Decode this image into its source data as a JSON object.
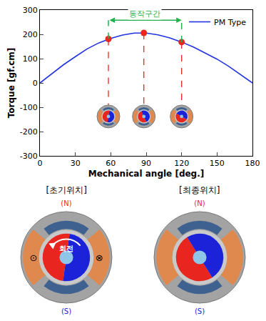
{
  "chart_data": {
    "type": "line",
    "x": [
      0,
      10,
      20,
      30,
      40,
      50,
      60,
      70,
      80,
      90,
      100,
      110,
      120,
      130,
      140,
      150,
      160,
      170,
      180
    ],
    "series": [
      {
        "name": "PM Type",
        "color": "#2233e0",
        "type": "line",
        "values": [
          0,
          38,
          75,
          108,
          140,
          165,
          183,
          197,
          205,
          205,
          198,
          185,
          168,
          148,
          124,
          98,
          68,
          35,
          0
        ]
      },
      {
        "type": "scatter",
        "marker": "circle",
        "color": "#e8271f",
        "x": [
          58,
          88,
          120
        ],
        "values": [
          181,
          206,
          168
        ]
      }
    ],
    "x_label": "Mechanical angle [deg.]",
    "y_label": "Torque [gf.cm]",
    "xlim": [
      0,
      180
    ],
    "xticks": [
      0,
      30,
      60,
      90,
      120,
      150,
      180
    ],
    "ylim": [
      -300,
      300
    ],
    "yticks": [
      -300,
      -200,
      -100,
      0,
      100,
      200,
      300
    ],
    "legend": "top-right",
    "region": {
      "label": "동작구간",
      "x": [
        58,
        120
      ],
      "color": "#22b14c"
    }
  },
  "diagrams": [
    {
      "label": "[초기위치]",
      "north": "(N)",
      "south": "(S)",
      "rotation_label": "회전",
      "current_symbols": [
        "⊙",
        "⊗"
      ]
    },
    {
      "label": "[최종위치]",
      "north": "(N)",
      "south": "(S)"
    }
  ]
}
